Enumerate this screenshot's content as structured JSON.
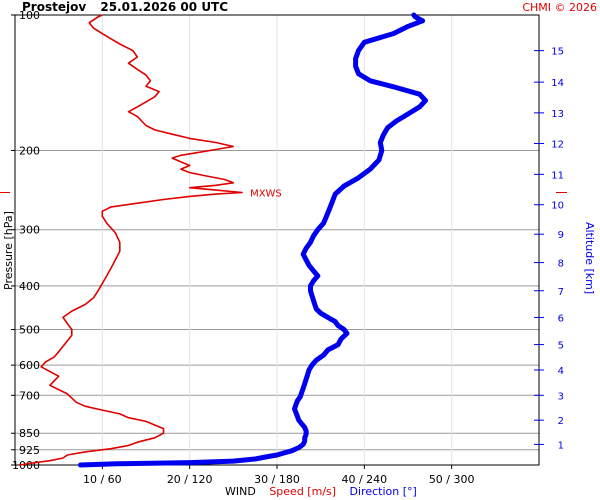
{
  "header": {
    "station": "Prostejov",
    "datetime": "25.01.2026 00 UTC",
    "copyright": "CHMI © 2026"
  },
  "footer": {
    "wind": "WIND",
    "speed": "Speed [m/s]",
    "direction": "Direction [°]"
  },
  "axes": {
    "pressure_title": "Pressure [hPa]",
    "altitude_title": "Altitude [km]"
  },
  "colors": {
    "speed": "#e00000",
    "direction": "#0000ee",
    "grid": "#9a9a9a",
    "text": "#000000"
  },
  "chart_data": {
    "type": "line",
    "y_axis": {
      "label": "Pressure [hPa]",
      "scale": "log",
      "range": [
        1000,
        100
      ],
      "ticks": [
        100,
        200,
        300,
        400,
        500,
        600,
        700,
        850,
        925,
        1000
      ]
    },
    "y2_axis": {
      "label": "Altitude [km]",
      "ticks": [
        1,
        2,
        3,
        4,
        5,
        6,
        7,
        8,
        9,
        10,
        11,
        12,
        13,
        14,
        15
      ]
    },
    "x_axis": {
      "label": "WIND",
      "ticks": [
        "10 / 60",
        "20 / 120",
        "30 / 180",
        "40 / 240",
        "50 / 300"
      ]
    },
    "speed_range": [
      0,
      60
    ],
    "direction_range": [
      0,
      360
    ],
    "annotation": {
      "label": "MXWS",
      "pressure": 248,
      "speed": 26
    },
    "series": [
      {
        "name": "Speed [m/s]",
        "unit": "m/s",
        "points": [
          [
            1000,
            0.5
          ],
          [
            990,
            2
          ],
          [
            978,
            4
          ],
          [
            965,
            5.5
          ],
          [
            950,
            6
          ],
          [
            935,
            8
          ],
          [
            920,
            11
          ],
          [
            905,
            13
          ],
          [
            890,
            14
          ],
          [
            870,
            16
          ],
          [
            850,
            17
          ],
          [
            830,
            17
          ],
          [
            815,
            16
          ],
          [
            800,
            15
          ],
          [
            785,
            13
          ],
          [
            770,
            12
          ],
          [
            755,
            10
          ],
          [
            740,
            8
          ],
          [
            725,
            7
          ],
          [
            710,
            6.5
          ],
          [
            695,
            6
          ],
          [
            680,
            5
          ],
          [
            665,
            4
          ],
          [
            650,
            4.5
          ],
          [
            635,
            5
          ],
          [
            620,
            4
          ],
          [
            605,
            3
          ],
          [
            590,
            3.5
          ],
          [
            575,
            4.5
          ],
          [
            560,
            5
          ],
          [
            545,
            5.5
          ],
          [
            530,
            6
          ],
          [
            515,
            6.5
          ],
          [
            500,
            6.5
          ],
          [
            485,
            6
          ],
          [
            470,
            5.5
          ],
          [
            455,
            6.5
          ],
          [
            440,
            8
          ],
          [
            425,
            9
          ],
          [
            410,
            9.5
          ],
          [
            395,
            10
          ],
          [
            380,
            10.5
          ],
          [
            365,
            11
          ],
          [
            350,
            11.5
          ],
          [
            335,
            12
          ],
          [
            320,
            12
          ],
          [
            305,
            11.5
          ],
          [
            290,
            10.5
          ],
          [
            280,
            10
          ],
          [
            273,
            10
          ],
          [
            267,
            11
          ],
          [
            262,
            14
          ],
          [
            257,
            17
          ],
          [
            253,
            20
          ],
          [
            250,
            23
          ],
          [
            248,
            26
          ],
          [
            245,
            23
          ],
          [
            242,
            20
          ],
          [
            239,
            23
          ],
          [
            236,
            25
          ],
          [
            232,
            24
          ],
          [
            228,
            22
          ],
          [
            224,
            20
          ],
          [
            220,
            19
          ],
          [
            216,
            20
          ],
          [
            212,
            19
          ],
          [
            208,
            18
          ],
          [
            205,
            19
          ],
          [
            202,
            21
          ],
          [
            199,
            23
          ],
          [
            196,
            25
          ],
          [
            192,
            23
          ],
          [
            188,
            20
          ],
          [
            184,
            18
          ],
          [
            180,
            16
          ],
          [
            176,
            15
          ],
          [
            172,
            14.5
          ],
          [
            168,
            14
          ],
          [
            164,
            13
          ],
          [
            160,
            14
          ],
          [
            156,
            15
          ],
          [
            152,
            16
          ],
          [
            148,
            16.5
          ],
          [
            144,
            15
          ],
          [
            140,
            15.5
          ],
          [
            136,
            15
          ],
          [
            132,
            14
          ],
          [
            128,
            13
          ],
          [
            124,
            14
          ],
          [
            120,
            13.5
          ],
          [
            116,
            12
          ],
          [
            113,
            11
          ],
          [
            110,
            10
          ],
          [
            107,
            9
          ],
          [
            104,
            8.5
          ],
          [
            101,
            9.5
          ],
          [
            100,
            10
          ]
        ]
      },
      {
        "name": "Direction [°]",
        "unit": "°",
        "points": [
          [
            1000,
            45
          ],
          [
            994,
            70
          ],
          [
            988,
            120
          ],
          [
            980,
            150
          ],
          [
            970,
            165
          ],
          [
            960,
            172
          ],
          [
            950,
            180
          ],
          [
            940,
            185
          ],
          [
            930,
            190
          ],
          [
            915,
            195
          ],
          [
            900,
            198
          ],
          [
            885,
            199
          ],
          [
            870,
            199
          ],
          [
            855,
            200
          ],
          [
            840,
            200
          ],
          [
            825,
            199
          ],
          [
            810,
            197
          ],
          [
            795,
            195
          ],
          [
            780,
            194
          ],
          [
            765,
            193
          ],
          [
            750,
            192
          ],
          [
            735,
            193
          ],
          [
            720,
            194
          ],
          [
            705,
            196
          ],
          [
            690,
            197
          ],
          [
            675,
            198
          ],
          [
            660,
            199
          ],
          [
            645,
            200
          ],
          [
            630,
            201
          ],
          [
            615,
            202
          ],
          [
            600,
            204
          ],
          [
            585,
            207
          ],
          [
            570,
            212
          ],
          [
            555,
            215
          ],
          [
            540,
            222
          ],
          [
            525,
            224
          ],
          [
            510,
            228
          ],
          [
            500,
            226
          ],
          [
            490,
            222
          ],
          [
            480,
            220
          ],
          [
            470,
            215
          ],
          [
            460,
            210
          ],
          [
            450,
            207
          ],
          [
            440,
            206
          ],
          [
            430,
            205
          ],
          [
            420,
            204
          ],
          [
            410,
            203
          ],
          [
            400,
            203
          ],
          [
            390,
            205
          ],
          [
            380,
            208
          ],
          [
            370,
            205
          ],
          [
            360,
            202
          ],
          [
            350,
            200
          ],
          [
            340,
            198
          ],
          [
            330,
            200
          ],
          [
            320,
            203
          ],
          [
            310,
            205
          ],
          [
            300,
            208
          ],
          [
            290,
            212
          ],
          [
            280,
            214
          ],
          [
            270,
            216
          ],
          [
            260,
            218
          ],
          [
            250,
            220
          ],
          [
            240,
            226
          ],
          [
            230,
            236
          ],
          [
            220,
            244
          ],
          [
            210,
            250
          ],
          [
            200,
            252
          ],
          [
            192,
            251
          ],
          [
            185,
            253
          ],
          [
            178,
            256
          ],
          [
            172,
            262
          ],
          [
            166,
            270
          ],
          [
            160,
            278
          ],
          [
            155,
            282
          ],
          [
            150,
            278
          ],
          [
            145,
            262
          ],
          [
            140,
            244
          ],
          [
            135,
            236
          ],
          [
            130,
            234
          ],
          [
            125,
            234
          ],
          [
            120,
            236
          ],
          [
            115,
            240
          ],
          [
            110,
            260
          ],
          [
            106,
            270
          ],
          [
            103,
            280
          ],
          [
            101,
            275
          ],
          [
            100,
            274
          ]
        ]
      }
    ]
  }
}
